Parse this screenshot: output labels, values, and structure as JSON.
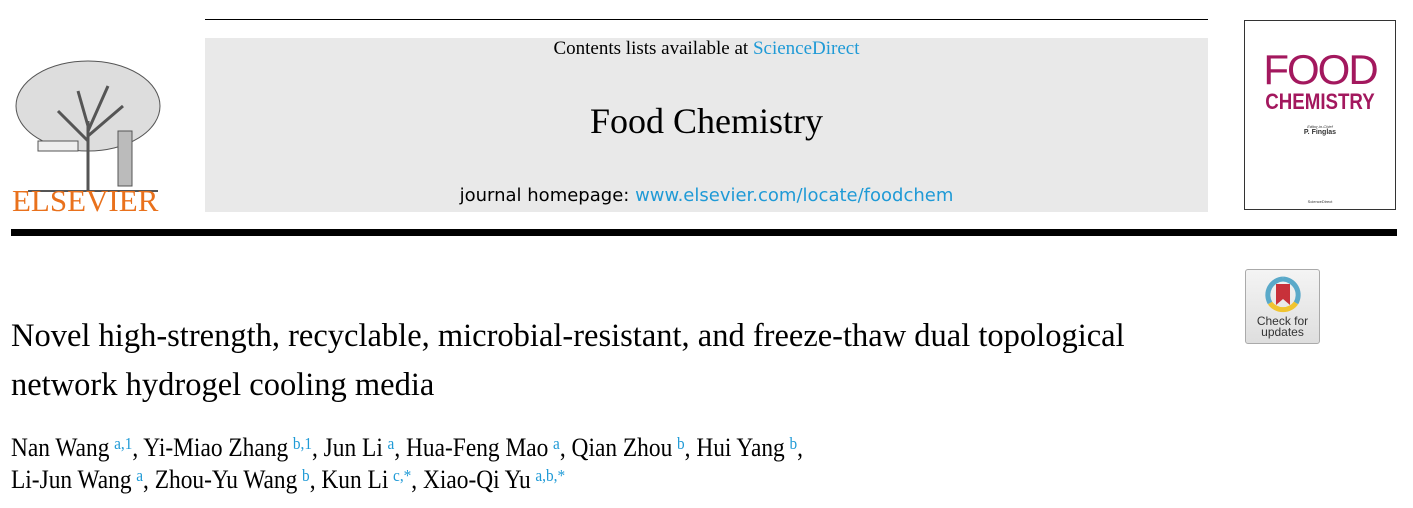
{
  "header": {
    "contents_prefix": "Contents lists available at ",
    "contents_link": "ScienceDirect",
    "journal_title": "Food Chemistry",
    "homepage_prefix": "journal homepage: ",
    "homepage_link": "www.elsevier.com/locate/foodchem",
    "publisher_logo_text": "ELSEVIER",
    "cover": {
      "line1": "FOOD",
      "line2": "CHEMISTRY",
      "editor_label": "Editor-in-Chief",
      "editor": "P. Finglas",
      "footer": "ScienceDirect"
    },
    "check_updates": "Check for updates"
  },
  "article": {
    "title": "Novel high-strength, recyclable, microbial-resistant, and freeze-thaw dual topological network hydrogel cooling media",
    "authors": [
      {
        "name": "Nan Wang",
        "aff": "a,1"
      },
      {
        "name": "Yi-Miao Zhang",
        "aff": "b,1"
      },
      {
        "name": "Jun Li",
        "aff": "a"
      },
      {
        "name": "Hua-Feng Mao",
        "aff": "a"
      },
      {
        "name": "Qian Zhou",
        "aff": "b"
      },
      {
        "name": "Hui Yang",
        "aff": "b"
      },
      {
        "name": "Li-Jun Wang",
        "aff": "a"
      },
      {
        "name": "Zhou-Yu Wang",
        "aff": "b"
      },
      {
        "name": "Kun Li",
        "aff": "c,*"
      },
      {
        "name": "Xiao-Qi Yu",
        "aff": "a,b,*"
      }
    ]
  },
  "colors": {
    "link": "#1f9ad6",
    "elsevier": "#e9711c",
    "cover": "#a3185e"
  }
}
